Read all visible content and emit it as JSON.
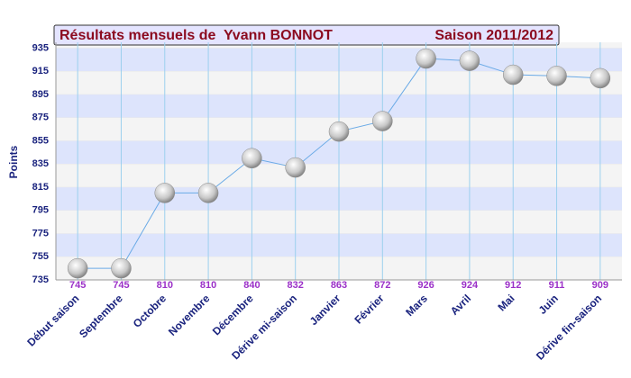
{
  "chart_data": {
    "type": "line",
    "title": "Résultats mensuels de  Yvann BONNOT",
    "subtitle": "Saison 2011/2012",
    "y_label": "Points",
    "categories": [
      "Début saison",
      "Septembre",
      "Octobre",
      "Novembre",
      "Décembre",
      "Dérive mi-saison",
      "Janvier",
      "Février",
      "Mars",
      "Avril",
      "Mai",
      "Juin",
      "Dérive fin-saison"
    ],
    "values": [
      745,
      745,
      810,
      810,
      840,
      832,
      863,
      872,
      926,
      924,
      912,
      911,
      909
    ],
    "color": "#6aaae6",
    "ylim": [
      735,
      940
    ],
    "yticks": [
      735,
      755,
      775,
      795,
      815,
      835,
      855,
      875,
      895,
      915,
      935
    ],
    "grid": true
  }
}
